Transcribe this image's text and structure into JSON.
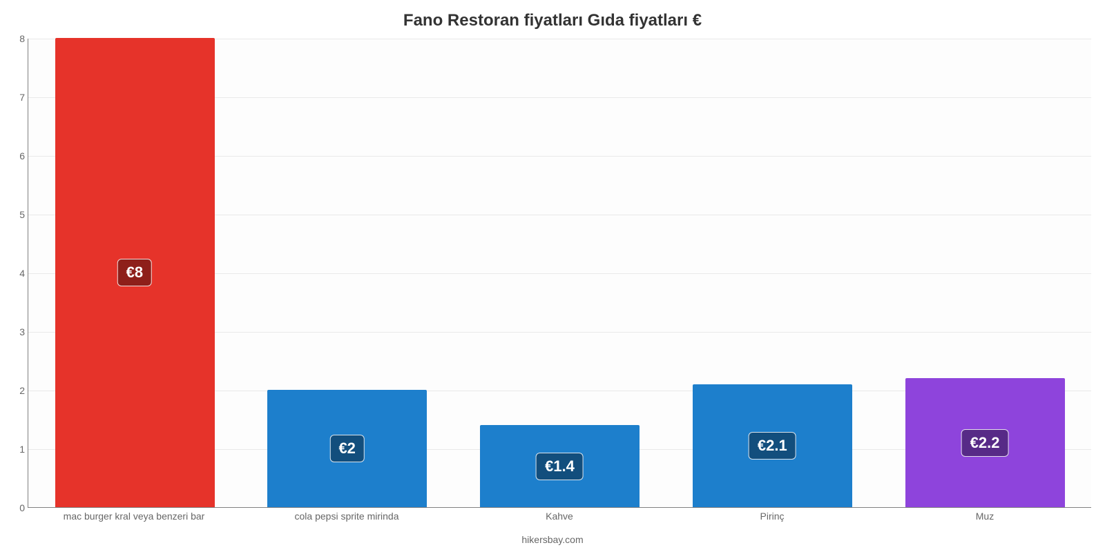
{
  "chart": {
    "type": "bar",
    "title": "Fano Restoran fiyatları Gıda fiyatları €",
    "title_fontsize": 24,
    "title_color": "#333333",
    "credit": "hikersbay.com",
    "credit_fontsize": 14,
    "credit_color": "#666666",
    "background_color": "#fdfdfd",
    "grid_color": "#e9e9e9",
    "axis_color": "#808080",
    "tick_label_color": "#666666",
    "tick_fontsize": 14,
    "ylim": [
      0,
      8
    ],
    "ytick_step": 1,
    "bar_width": 0.75,
    "value_label_fontsize": 22,
    "categories": [
      "mac burger kral veya benzeri bar",
      "cola pepsi sprite mirinda",
      "Kahve",
      "Pirinç",
      "Muz"
    ],
    "values": [
      8,
      2,
      1.4,
      2.1,
      2.2
    ],
    "value_labels": [
      "€8",
      "€2",
      "€1.4",
      "€2.1",
      "€2.2"
    ],
    "bar_colors": [
      "#e6332a",
      "#1d7fcc",
      "#1d7fcc",
      "#1d7fcc",
      "#8e44dc"
    ],
    "badge_colors": [
      "#8e1f1a",
      "#124e7d",
      "#124e7d",
      "#124e7d",
      "#572a87"
    ]
  }
}
